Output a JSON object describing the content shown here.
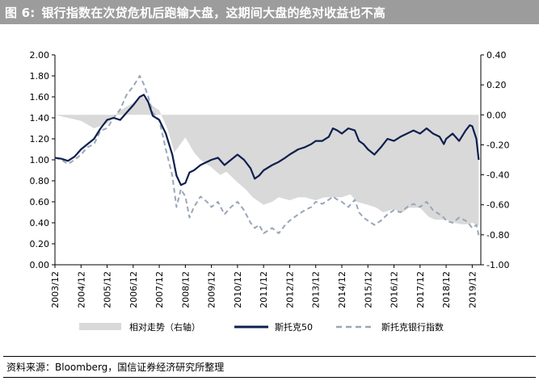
{
  "header": {
    "figure_number": "图 6:",
    "title": "银行指数在次贷危机后跑输大盘，这期间大盘的绝对收益也不高"
  },
  "footer": {
    "source": "资料来源：Bloomberg，国信证券经济研究所整理"
  },
  "colors": {
    "title_bar": "#9c9c9c",
    "relative_area": "#d9d9d9",
    "nasdaq50_line": "#0d1f4e",
    "bank_index_line": "#9aa6b8"
  },
  "chart_data": {
    "type": "line",
    "title": "",
    "grid": false,
    "legend_position": "bottom",
    "x_axis": {
      "tick_labels": [
        "2003/12",
        "2004/12",
        "2005/12",
        "2006/12",
        "2007/12",
        "2008/12",
        "2009/12",
        "2010/12",
        "2011/12",
        "2012/12",
        "2013/12",
        "2014/12",
        "2015/12",
        "2016/12",
        "2017/12",
        "2018/12",
        "2019/12"
      ],
      "range": [
        "2003/12",
        "2020/03"
      ]
    },
    "y_axis_left": {
      "range": [
        0,
        2
      ],
      "tick_labels": [
        "2.00",
        "1.80",
        "1.60",
        "1.40",
        "1.20",
        "1.00",
        "0.80",
        "0.60",
        "0.40",
        "0.20",
        "0.00"
      ]
    },
    "y_axis_right": {
      "range": [
        -1,
        0.4
      ],
      "tick_labels": [
        "0.40",
        "0.20",
        "0.00",
        "-0.20",
        "-0.40",
        "-0.60",
        "-0.80",
        "-1.00"
      ]
    },
    "series": [
      {
        "name": "相对走势（右轴）",
        "kind": "area",
        "axis": "right",
        "x": [
          2003.92,
          2004.42,
          2004.92,
          2005.42,
          2005.92,
          2006.42,
          2006.92,
          2007.25,
          2007.5,
          2007.92,
          2008.25,
          2008.5,
          2008.92,
          2009.25,
          2009.5,
          2009.92,
          2010.25,
          2010.5,
          2010.92,
          2011.25,
          2011.5,
          2011.92,
          2012.25,
          2012.5,
          2012.92,
          2013.25,
          2013.5,
          2013.92,
          2014.25,
          2014.5,
          2014.92,
          2015.25,
          2015.5,
          2015.92,
          2016.25,
          2016.5,
          2016.92,
          2017.25,
          2017.5,
          2017.92,
          2018.25,
          2018.5,
          2018.92,
          2019.25,
          2019.5,
          2019.75,
          2019.92,
          2020.17
        ],
        "values": [
          0.0,
          -0.02,
          -0.04,
          -0.09,
          -0.06,
          0.03,
          0.08,
          0.13,
          0.08,
          0.03,
          -0.1,
          -0.25,
          -0.15,
          -0.25,
          -0.3,
          -0.35,
          -0.4,
          -0.38,
          -0.45,
          -0.5,
          -0.55,
          -0.6,
          -0.58,
          -0.55,
          -0.57,
          -0.55,
          -0.55,
          -0.57,
          -0.55,
          -0.55,
          -0.55,
          -0.53,
          -0.58,
          -0.6,
          -0.62,
          -0.65,
          -0.63,
          -0.65,
          -0.62,
          -0.62,
          -0.68,
          -0.7,
          -0.7,
          -0.72,
          -0.73,
          -0.73,
          -0.72,
          -0.74
        ]
      },
      {
        "name": "斯托克50",
        "kind": "line",
        "axis": "left",
        "x": [
          2003.92,
          2004.17,
          2004.42,
          2004.67,
          2004.92,
          2005.17,
          2005.42,
          2005.67,
          2005.92,
          2006.17,
          2006.42,
          2006.67,
          2006.92,
          2007.17,
          2007.33,
          2007.5,
          2007.67,
          2007.92,
          2008.17,
          2008.42,
          2008.58,
          2008.75,
          2008.92,
          2009.08,
          2009.25,
          2009.5,
          2009.75,
          2009.92,
          2010.17,
          2010.42,
          2010.67,
          2010.92,
          2011.17,
          2011.42,
          2011.58,
          2011.75,
          2011.92,
          2012.25,
          2012.5,
          2012.75,
          2012.92,
          2013.25,
          2013.5,
          2013.75,
          2013.92,
          2014.17,
          2014.42,
          2014.58,
          2014.75,
          2014.92,
          2015.17,
          2015.42,
          2015.58,
          2015.75,
          2015.92,
          2016.17,
          2016.42,
          2016.67,
          2016.92,
          2017.17,
          2017.42,
          2017.67,
          2017.92,
          2018.17,
          2018.42,
          2018.67,
          2018.83,
          2018.92,
          2019.17,
          2019.42,
          2019.67,
          2019.83,
          2019.92,
          2020.08,
          2020.17
        ],
        "values": [
          1.02,
          1.01,
          0.99,
          1.03,
          1.1,
          1.15,
          1.2,
          1.3,
          1.38,
          1.4,
          1.38,
          1.45,
          1.52,
          1.6,
          1.62,
          1.55,
          1.42,
          1.38,
          1.25,
          1.05,
          0.85,
          0.76,
          0.78,
          0.88,
          0.9,
          0.95,
          0.98,
          1.0,
          1.02,
          0.95,
          1.0,
          1.05,
          1.0,
          0.92,
          0.82,
          0.85,
          0.9,
          0.95,
          0.98,
          1.02,
          1.05,
          1.1,
          1.12,
          1.15,
          1.18,
          1.18,
          1.22,
          1.3,
          1.28,
          1.25,
          1.3,
          1.28,
          1.18,
          1.15,
          1.1,
          1.05,
          1.12,
          1.2,
          1.18,
          1.22,
          1.25,
          1.28,
          1.25,
          1.3,
          1.25,
          1.22,
          1.15,
          1.2,
          1.25,
          1.18,
          1.28,
          1.33,
          1.32,
          1.2,
          1.0
        ]
      },
      {
        "name": "斯托克银行指数",
        "kind": "line",
        "axis": "left",
        "x": [
          2003.92,
          2004.17,
          2004.42,
          2004.67,
          2004.92,
          2005.17,
          2005.42,
          2005.67,
          2005.92,
          2006.17,
          2006.42,
          2006.67,
          2006.92,
          2007.17,
          2007.33,
          2007.5,
          2007.67,
          2007.92,
          2008.17,
          2008.42,
          2008.58,
          2008.75,
          2008.92,
          2009.08,
          2009.25,
          2009.5,
          2009.75,
          2009.92,
          2010.17,
          2010.42,
          2010.67,
          2010.92,
          2011.17,
          2011.42,
          2011.58,
          2011.75,
          2011.92,
          2012.25,
          2012.5,
          2012.75,
          2012.92,
          2013.25,
          2013.5,
          2013.75,
          2013.92,
          2014.17,
          2014.42,
          2014.58,
          2014.75,
          2014.92,
          2015.17,
          2015.42,
          2015.58,
          2015.75,
          2015.92,
          2016.17,
          2016.42,
          2016.67,
          2016.92,
          2017.17,
          2017.42,
          2017.67,
          2017.92,
          2018.17,
          2018.42,
          2018.67,
          2018.83,
          2018.92,
          2019.17,
          2019.42,
          2019.67,
          2019.83,
          2019.92,
          2020.08,
          2020.17
        ],
        "values": [
          1.02,
          1.0,
          0.96,
          1.0,
          1.05,
          1.12,
          1.15,
          1.28,
          1.3,
          1.4,
          1.48,
          1.62,
          1.7,
          1.8,
          1.72,
          1.6,
          1.45,
          1.38,
          1.1,
          0.85,
          0.55,
          0.72,
          0.65,
          0.45,
          0.55,
          0.65,
          0.6,
          0.55,
          0.6,
          0.48,
          0.55,
          0.6,
          0.52,
          0.4,
          0.35,
          0.38,
          0.3,
          0.35,
          0.3,
          0.38,
          0.42,
          0.48,
          0.52,
          0.55,
          0.6,
          0.58,
          0.62,
          0.65,
          0.62,
          0.6,
          0.55,
          0.62,
          0.5,
          0.45,
          0.42,
          0.38,
          0.42,
          0.48,
          0.52,
          0.5,
          0.55,
          0.58,
          0.55,
          0.6,
          0.52,
          0.48,
          0.45,
          0.42,
          0.4,
          0.45,
          0.42,
          0.38,
          0.35,
          0.38,
          0.28
        ]
      }
    ]
  }
}
